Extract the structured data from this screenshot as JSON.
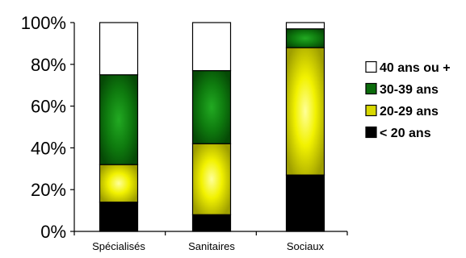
{
  "chart_data": {
    "type": "bar",
    "stacked": true,
    "percent": true,
    "categories": [
      "Spécialisés",
      "Sanitaires",
      "Sociaux"
    ],
    "series": [
      {
        "name": "< 20 ans",
        "values": [
          14,
          8,
          27
        ],
        "color": "#000000",
        "style": "solid"
      },
      {
        "name": "20-29 ans",
        "values": [
          18,
          34,
          61
        ],
        "color": "#d8d800",
        "style": "radial-yellow"
      },
      {
        "name": "30-39 ans",
        "values": [
          43,
          35,
          9
        ],
        "color": "#0b6b0b",
        "style": "radial-green"
      },
      {
        "name": "40 ans ou +",
        "values": [
          25,
          23,
          3
        ],
        "color": "#ffffff",
        "style": "solid"
      }
    ],
    "ylim": [
      0,
      100
    ],
    "yticks": [
      "0%",
      "20%",
      "40%",
      "60%",
      "80%",
      "100%"
    ],
    "legend_order": [
      "40 ans ou +",
      "30-39 ans",
      "20-29 ans",
      "< 20 ans"
    ],
    "legend_position": "right",
    "grid": false
  }
}
